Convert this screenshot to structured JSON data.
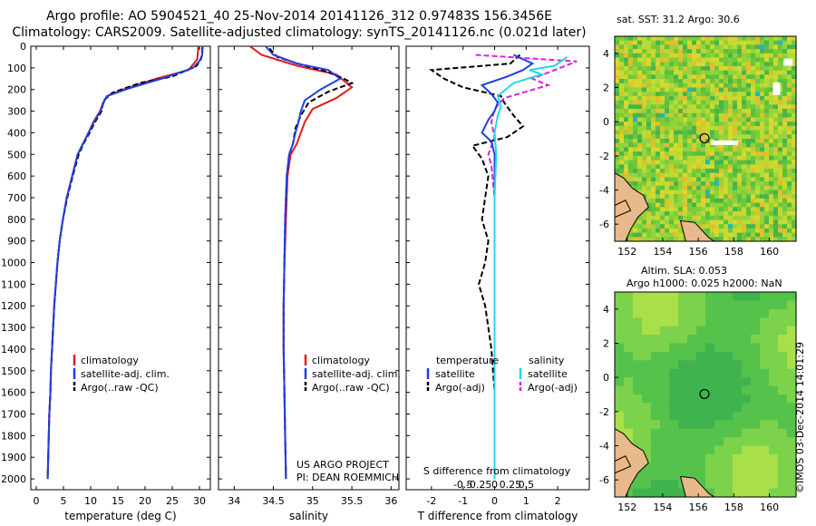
{
  "header": {
    "line1": "Argo profile: AO 5904521_40 25-Nov-2014 20141126_312 0.97483S 156.3456E",
    "line2": "Climatology: CARS2009. Satellite-adjusted climatology: synTS_20141126.nc (0.021d later)"
  },
  "colors": {
    "climatology": "#e41a1c",
    "satellite": "#1f3fe0",
    "argo": "#000000",
    "sat_sal": "#20d8e8",
    "argo_sal": "#e020e0",
    "land": "#e8b98a"
  },
  "depth_axis": {
    "min": 0,
    "max": 2050,
    "ticks": [
      0,
      100,
      200,
      300,
      400,
      500,
      600,
      700,
      800,
      900,
      1000,
      1100,
      1200,
      1300,
      1400,
      1500,
      1600,
      1700,
      1800,
      1900,
      2000
    ]
  },
  "panels": {
    "temperature": {
      "xlabel": "temperature (deg C)",
      "xlim": [
        -1,
        32
      ],
      "xticks": [
        0,
        5,
        10,
        15,
        20,
        25,
        30
      ],
      "legend": [
        "climatology",
        "satellite-adj. clim.",
        "Argo(..raw -QC)"
      ],
      "series": {
        "climatology": [
          [
            29.8,
            0
          ],
          [
            29.7,
            30
          ],
          [
            29.6,
            60
          ],
          [
            28,
            110
          ],
          [
            22,
            150
          ],
          [
            16,
            200
          ],
          [
            13,
            230
          ],
          [
            12.3,
            260
          ],
          [
            11.7,
            300
          ],
          [
            10.5,
            350
          ],
          [
            9.6,
            400
          ],
          [
            8.6,
            450
          ],
          [
            7.6,
            500
          ],
          [
            6.6,
            600
          ],
          [
            5.6,
            700
          ],
          [
            4.9,
            800
          ],
          [
            4.3,
            900
          ],
          [
            3.9,
            1000
          ],
          [
            3.6,
            1100
          ],
          [
            3.3,
            1200
          ],
          [
            3.1,
            1300
          ],
          [
            2.9,
            1400
          ],
          [
            2.7,
            1500
          ],
          [
            2.6,
            1600
          ],
          [
            2.4,
            1700
          ],
          [
            2.3,
            1800
          ],
          [
            2.2,
            1900
          ],
          [
            2.1,
            2000
          ]
        ],
        "satellite": [
          [
            30.6,
            0
          ],
          [
            30.5,
            40
          ],
          [
            30.3,
            60
          ],
          [
            28.8,
            100
          ],
          [
            23,
            150
          ],
          [
            17,
            195
          ],
          [
            13,
            230
          ],
          [
            12.4,
            260
          ],
          [
            11.8,
            300
          ],
          [
            10.6,
            350
          ],
          [
            9.6,
            400
          ],
          [
            8.6,
            450
          ],
          [
            7.6,
            500
          ],
          [
            6.6,
            600
          ],
          [
            5.6,
            700
          ],
          [
            4.9,
            800
          ],
          [
            4.3,
            900
          ],
          [
            3.9,
            1000
          ],
          [
            3.6,
            1100
          ],
          [
            3.3,
            1200
          ],
          [
            3.1,
            1300
          ],
          [
            2.9,
            1400
          ],
          [
            2.7,
            1500
          ],
          [
            2.6,
            1600
          ],
          [
            2.4,
            1700
          ],
          [
            2.3,
            1800
          ],
          [
            2.2,
            1900
          ],
          [
            2.1,
            2000
          ]
        ],
        "argo": [
          [
            30.5,
            5
          ],
          [
            30.5,
            40
          ],
          [
            30.2,
            60
          ],
          [
            29.5,
            90
          ],
          [
            25,
            140
          ],
          [
            19,
            170
          ],
          [
            14,
            215
          ],
          [
            12.4,
            250
          ],
          [
            12.0,
            300
          ],
          [
            10.8,
            350
          ],
          [
            9.8,
            400
          ],
          [
            8.7,
            450
          ],
          [
            7.8,
            500
          ],
          [
            6.7,
            600
          ],
          [
            5.7,
            700
          ],
          [
            4.9,
            800
          ],
          [
            4.3,
            900
          ],
          [
            3.9,
            1000
          ],
          [
            3.6,
            1100
          ],
          [
            3.3,
            1200
          ],
          [
            3.1,
            1300
          ],
          [
            2.9,
            1400
          ],
          [
            2.7,
            1500
          ],
          [
            2.6,
            1600
          ],
          [
            2.4,
            1700
          ],
          [
            2.3,
            1800
          ],
          [
            2.2,
            1900
          ],
          [
            2.1,
            1985
          ]
        ]
      }
    },
    "salinity": {
      "xlabel": "salinity",
      "xlim": [
        33.8,
        36.1
      ],
      "xticks": [
        34,
        34.5,
        35,
        35.5,
        36
      ],
      "legend": [
        "climatology",
        "satellite-adj. clim.",
        "Argo(..raw -QC)"
      ],
      "credit1": "US ARGO PROJECT",
      "credit2": "PI: DEAN ROEMMICH",
      "series": {
        "climatology": [
          [
            34.2,
            0
          ],
          [
            34.35,
            40
          ],
          [
            34.8,
            90
          ],
          [
            35.3,
            130
          ],
          [
            35.5,
            190
          ],
          [
            35.3,
            240
          ],
          [
            35.0,
            290
          ],
          [
            34.9,
            350
          ],
          [
            34.85,
            400
          ],
          [
            34.8,
            450
          ],
          [
            34.72,
            500
          ],
          [
            34.68,
            600
          ],
          [
            34.66,
            800
          ],
          [
            34.64,
            1000
          ],
          [
            34.63,
            1200
          ],
          [
            34.63,
            1400
          ],
          [
            34.64,
            1600
          ],
          [
            34.65,
            1800
          ],
          [
            34.66,
            2000
          ]
        ],
        "satellite": [
          [
            34.4,
            0
          ],
          [
            34.5,
            40
          ],
          [
            34.8,
            80
          ],
          [
            35.2,
            110
          ],
          [
            35.35,
            150
          ],
          [
            35.1,
            200
          ],
          [
            34.9,
            250
          ],
          [
            34.85,
            300
          ],
          [
            34.82,
            350
          ],
          [
            34.78,
            400
          ],
          [
            34.75,
            450
          ],
          [
            34.7,
            500
          ],
          [
            34.67,
            600
          ],
          [
            34.65,
            800
          ],
          [
            34.64,
            1000
          ],
          [
            34.63,
            1200
          ],
          [
            34.63,
            1400
          ],
          [
            34.64,
            1600
          ],
          [
            34.65,
            1800
          ],
          [
            34.66,
            2000
          ]
        ],
        "argo": [
          [
            34.45,
            10
          ],
          [
            34.55,
            50
          ],
          [
            34.9,
            90
          ],
          [
            35.2,
            120
          ],
          [
            35.4,
            150
          ],
          [
            35.5,
            170
          ],
          [
            35.2,
            210
          ],
          [
            34.95,
            260
          ],
          [
            34.85,
            320
          ],
          [
            34.78,
            380
          ],
          [
            34.75,
            450
          ],
          [
            34.7,
            500
          ],
          [
            34.67,
            600
          ],
          [
            34.65,
            800
          ],
          [
            34.64,
            1000
          ],
          [
            34.63,
            1200
          ],
          [
            34.63,
            1400
          ],
          [
            34.64,
            1600
          ],
          [
            34.65,
            1800
          ],
          [
            34.66,
            1985
          ]
        ]
      }
    },
    "difference": {
      "xlabel": "T difference from climatology",
      "xlim": [
        -2.8,
        3.0
      ],
      "xticks": [
        -2,
        -1,
        0,
        1,
        2
      ],
      "top_label": "S difference from climatology",
      "top_ticks": [
        "-0.5",
        "-0.25",
        "0",
        "0.25",
        "0.5"
      ],
      "legend_temp_title": "temperature",
      "legend_sal_title": "salinity",
      "legend_items": [
        "satellite",
        "Argo(-adj)",
        "satellite",
        "Argo(-adj)"
      ],
      "series": {
        "temp_sat": [
          [
            0.6,
            40
          ],
          [
            1.2,
            80
          ],
          [
            0.9,
            110
          ],
          [
            0.4,
            140
          ],
          [
            -0.4,
            180
          ],
          [
            -0.1,
            220
          ],
          [
            0.1,
            260
          ],
          [
            0.0,
            300
          ],
          [
            -0.2,
            340
          ],
          [
            -0.4,
            400
          ],
          [
            -0.1,
            440
          ],
          [
            0.0,
            500
          ],
          [
            0.0,
            700
          ],
          [
            0.0,
            1000
          ],
          [
            0.0,
            1500
          ],
          [
            0.0,
            2000
          ]
        ],
        "temp_argo": [
          [
            0.8,
            40
          ],
          [
            0.5,
            80
          ],
          [
            -2.0,
            110
          ],
          [
            -1.6,
            150
          ],
          [
            -1.0,
            190
          ],
          [
            0.2,
            230
          ],
          [
            0.3,
            260
          ],
          [
            0.6,
            320
          ],
          [
            0.9,
            370
          ],
          [
            0.4,
            420
          ],
          [
            -0.7,
            460
          ],
          [
            -0.4,
            520
          ],
          [
            -0.2,
            600
          ],
          [
            -0.3,
            700
          ],
          [
            -0.4,
            800
          ],
          [
            -0.2,
            900
          ],
          [
            -0.3,
            1000
          ],
          [
            -0.5,
            1100
          ],
          [
            -0.3,
            1200
          ],
          [
            -0.2,
            1300
          ],
          [
            -0.1,
            1400
          ],
          [
            0.0,
            1600
          ],
          [
            0.0,
            1800
          ],
          [
            0.0,
            1985
          ]
        ],
        "sal_sat": [
          [
            2.3,
            50
          ],
          [
            1.9,
            90
          ],
          [
            1.1,
            110
          ],
          [
            1.5,
            130
          ],
          [
            0.6,
            170
          ],
          [
            0.1,
            230
          ],
          [
            0.2,
            280
          ],
          [
            0.1,
            320
          ],
          [
            0.0,
            400
          ],
          [
            0.05,
            500
          ],
          [
            0.0,
            700
          ],
          [
            0.0,
            1000
          ],
          [
            0.0,
            1500
          ],
          [
            0.0,
            2000
          ]
        ],
        "sal_argo": [
          [
            -0.6,
            40
          ],
          [
            1.5,
            60
          ],
          [
            2.6,
            70
          ],
          [
            1.2,
            150
          ],
          [
            1.7,
            180
          ],
          [
            0.3,
            240
          ],
          [
            0.0,
            290
          ],
          [
            -0.1,
            350
          ],
          [
            0.0,
            420
          ],
          [
            -0.2,
            500
          ],
          [
            -0.1,
            550
          ],
          [
            0.0,
            700
          ],
          [
            0.0,
            1200
          ],
          [
            0.0,
            1600
          ],
          [
            0.0,
            1985
          ]
        ]
      }
    }
  },
  "maps": {
    "sst": {
      "title": "sat. SST: 31.2  Argo: 30.6",
      "lon": [
        151.3,
        161.5
      ],
      "lat": [
        -7,
        5
      ],
      "xticks": [
        152,
        154,
        156,
        158,
        160
      ],
      "yticks": [
        4,
        2,
        0,
        -2,
        -4,
        -6
      ],
      "profile": [
        156.35,
        -0.97
      ]
    },
    "sla": {
      "title1": "Altim. SLA: 0.053",
      "title2": "Argo h1000: 0.025 h2000: NaN",
      "lon": [
        151.3,
        161.5
      ],
      "lat": [
        -7,
        5
      ],
      "xticks": [
        152,
        154,
        156,
        158,
        160
      ],
      "yticks": [
        4,
        2,
        0,
        -2,
        -4,
        -6
      ],
      "profile": [
        156.35,
        -0.97
      ]
    }
  },
  "footer": {
    "stamp": "©IMOS 03-Dec-2014 14:01:29"
  }
}
